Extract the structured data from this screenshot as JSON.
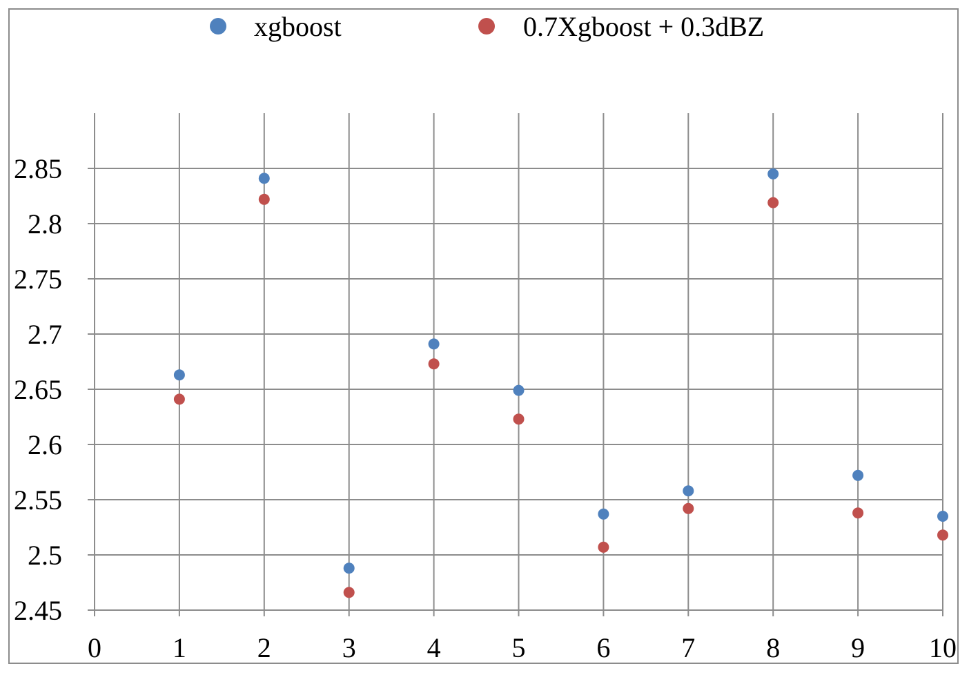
{
  "chart_data": {
    "type": "scatter",
    "title": "",
    "xlabel": "",
    "ylabel": "",
    "xlim": [
      0,
      10
    ],
    "ylim": [
      2.45,
      2.9
    ],
    "x_ticks": [
      0,
      1,
      2,
      3,
      4,
      5,
      6,
      7,
      8,
      9,
      10
    ],
    "y_ticks": [
      2.45,
      2.5,
      2.55,
      2.6,
      2.65,
      2.7,
      2.75,
      2.8,
      2.85
    ],
    "x_tick_labels": [
      "0",
      "1",
      "2",
      "3",
      "4",
      "5",
      "6",
      "7",
      "8",
      "9",
      "10"
    ],
    "y_tick_labels": [
      "2.45",
      "2.5",
      "2.55",
      "2.6",
      "2.65",
      "2.7",
      "2.75",
      "2.8",
      "2.85"
    ],
    "grid": true,
    "legend_position": "top",
    "series": [
      {
        "name": "xgboost",
        "color": "#4f81bd",
        "x": [
          1,
          2,
          3,
          4,
          5,
          6,
          7,
          8,
          9,
          10
        ],
        "y": [
          2.663,
          2.841,
          2.488,
          2.691,
          2.649,
          2.537,
          2.558,
          2.845,
          2.572,
          2.535
        ]
      },
      {
        "name": "0.7Xgboost + 0.3dBZ",
        "color": "#c0504d",
        "x": [
          1,
          2,
          3,
          4,
          5,
          6,
          7,
          8,
          9,
          10
        ],
        "y": [
          2.641,
          2.822,
          2.466,
          2.673,
          2.623,
          2.507,
          2.542,
          2.819,
          2.538,
          2.518
        ]
      }
    ]
  }
}
